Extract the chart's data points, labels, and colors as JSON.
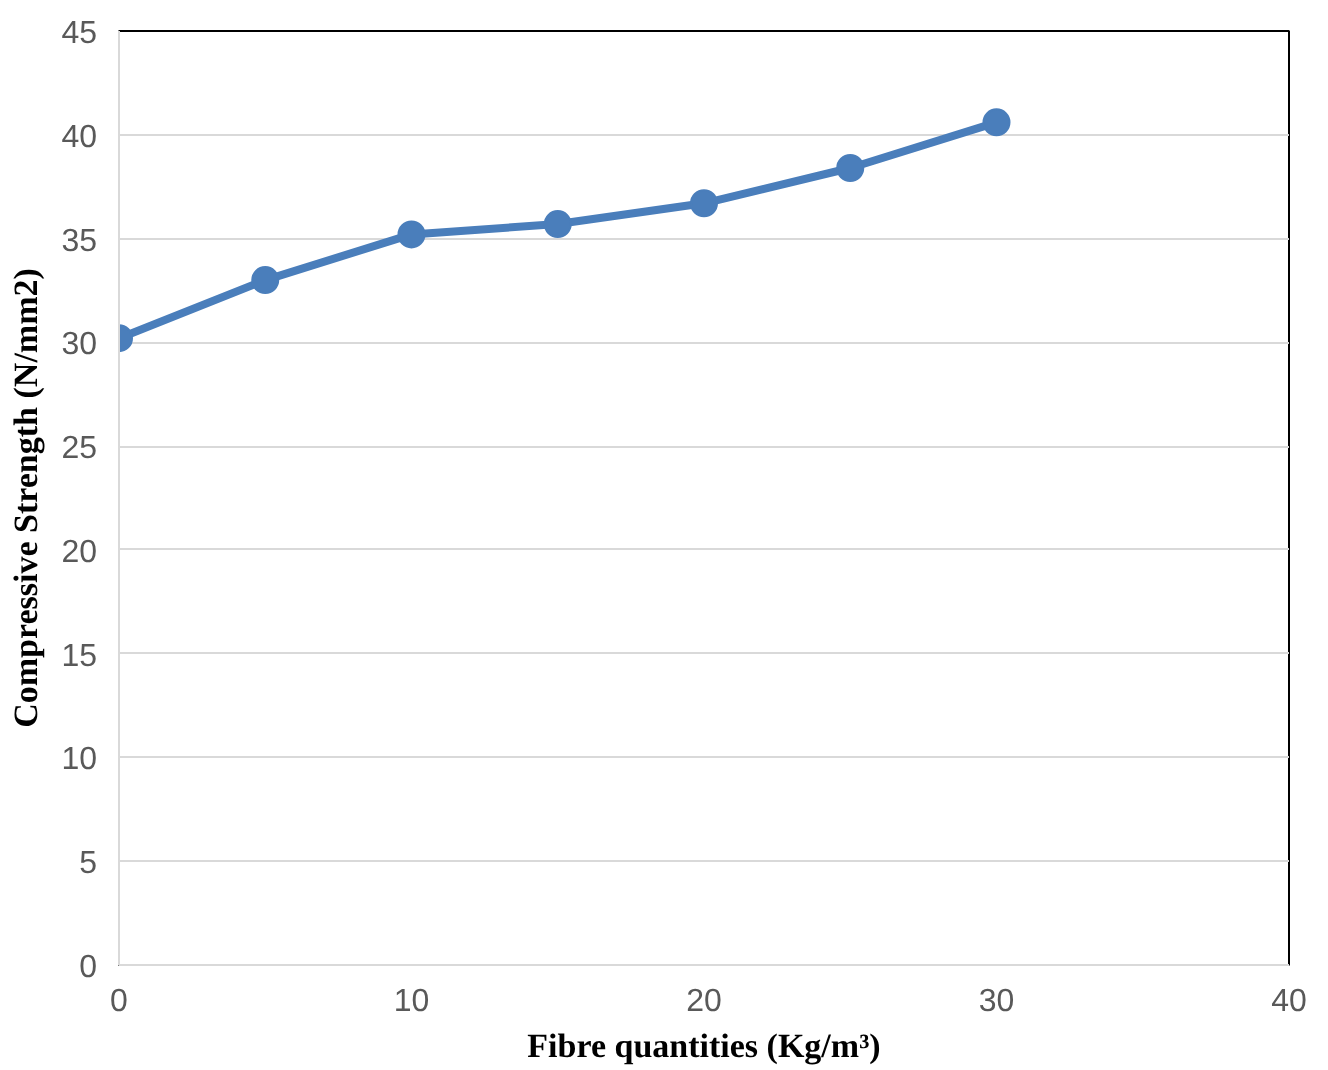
{
  "chart_data": {
    "type": "line",
    "xlabel": "Fibre quantities (Kg/m³)",
    "ylabel": "Compressive Strength (N/mm2)",
    "x": [
      0,
      5,
      10,
      15,
      20,
      25,
      30
    ],
    "series": [
      {
        "color": "#4a7ebb",
        "values": [
          30.2,
          33.0,
          35.2,
          35.7,
          36.7,
          38.4,
          40.6
        ]
      }
    ],
    "xlim": [
      0,
      40
    ],
    "xticks": [
      0,
      10,
      20,
      30,
      40
    ],
    "ylim": [
      0,
      45
    ],
    "yticks": [
      0,
      5,
      10,
      15,
      20,
      25,
      30,
      35,
      40,
      45
    ],
    "grid": "y",
    "marker": "circle",
    "line_style": "solid"
  }
}
